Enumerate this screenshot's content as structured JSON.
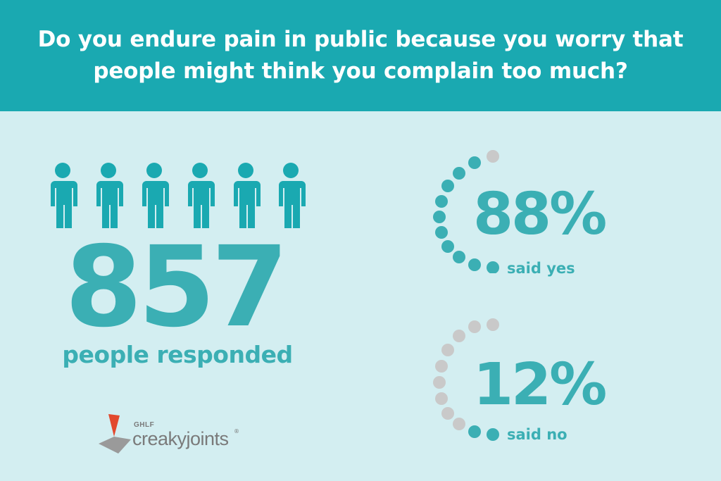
{
  "header": {
    "question": "Do you endure pain in public because you worry that people might think you complain too much?"
  },
  "respondents": {
    "count": "857",
    "label": "people responded",
    "icon": "person-icon"
  },
  "results": [
    {
      "percent": "88%",
      "label": "said yes",
      "value": 0.88
    },
    {
      "percent": "12%",
      "label": "said no",
      "value": 0.12
    }
  ],
  "logo": {
    "org": "GHLF",
    "brand": "creakyjoints",
    "reg": "®"
  },
  "colors": {
    "header": "#1aa9b1",
    "background": "#d3eef1",
    "teal": "#3bafb4",
    "grey_dot": "#c9c9c9",
    "logo_red": "#e2492e"
  }
}
